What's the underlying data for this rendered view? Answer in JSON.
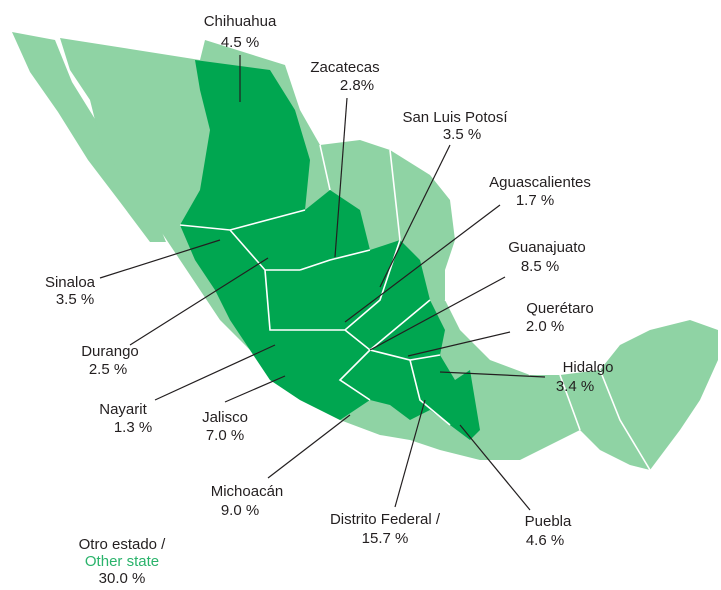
{
  "states": [
    {
      "name": "Chihuahua",
      "share": "4.5 %"
    },
    {
      "name": "Zacatecas",
      "share": "2.8%"
    },
    {
      "name": "San Luis Potosí",
      "share": "3.5 %"
    },
    {
      "name": "Aguascalientes",
      "share": "1.7 %"
    },
    {
      "name": "Guanajuato",
      "share": "8.5 %"
    },
    {
      "name": "Querétaro",
      "share": "2.0 %"
    },
    {
      "name": "Hidalgo",
      "share": "3.4 %"
    },
    {
      "name": "Puebla",
      "share": "4.6 %"
    },
    {
      "name": "Distrito Federal /",
      "share": "15.7 %"
    },
    {
      "name": "Michoacán",
      "share": "9.0 %"
    },
    {
      "name": "Jalisco",
      "share": "7.0 %"
    },
    {
      "name": "Nayarit",
      "share": "1.3 %"
    },
    {
      "name": "Durango",
      "share": "2.5 %"
    },
    {
      "name": "Sinaloa",
      "share": "3.5 %"
    }
  ],
  "other": {
    "name": "Otro estado /",
    "name_en": "Other state",
    "share": "30.0 %"
  }
}
